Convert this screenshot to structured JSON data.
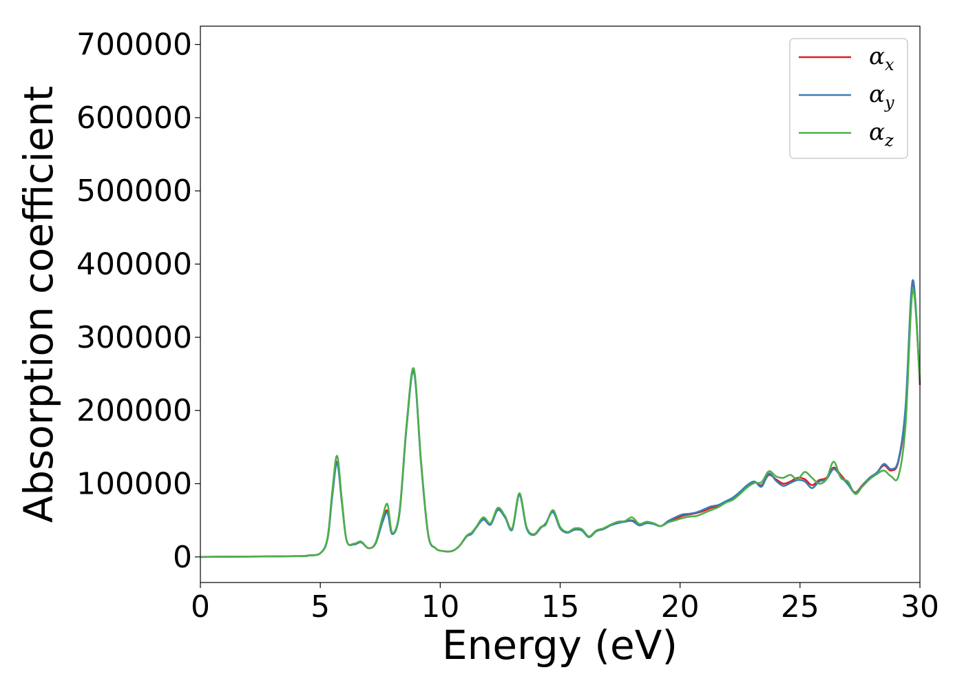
{
  "chart_data": {
    "type": "line",
    "xlabel": "Energy (eV)",
    "ylabel": "Absorption coefficient",
    "xlim": [
      0,
      30
    ],
    "ylim": [
      -35000,
      725000
    ],
    "xticks": [
      0,
      5,
      10,
      15,
      20,
      25,
      30
    ],
    "xtick_labels": [
      "0",
      "5",
      "10",
      "15",
      "20",
      "25",
      "30"
    ],
    "yticks": [
      0,
      100000,
      200000,
      300000,
      400000,
      500000,
      600000,
      700000
    ],
    "ytick_labels": [
      "0",
      "100000",
      "200000",
      "300000",
      "400000",
      "500000",
      "600000",
      "700000"
    ],
    "grid": false,
    "legend_position": "top-right",
    "series": [
      {
        "name": "αx",
        "legend_symbol": "α",
        "legend_subscript": "x",
        "color": "#e41a1c",
        "x": [
          0,
          4,
          4.5,
          5,
          5.3,
          5.5,
          5.7,
          5.9,
          6.1,
          6.4,
          6.7,
          7.0,
          7.3,
          7.6,
          7.8,
          8.0,
          8.3,
          8.6,
          8.9,
          9.2,
          9.5,
          9.8,
          10.1,
          10.5,
          10.8,
          11.1,
          11.3,
          11.5,
          11.8,
          12.1,
          12.4,
          12.7,
          13.0,
          13.3,
          13.6,
          13.9,
          14.2,
          14.4,
          14.7,
          15.0,
          15.3,
          15.6,
          15.9,
          16.2,
          16.5,
          16.8,
          17.1,
          17.4,
          17.7,
          18.0,
          18.3,
          18.6,
          18.9,
          19.2,
          19.5,
          19.8,
          20.1,
          20.4,
          20.7,
          21.0,
          21.3,
          21.6,
          21.9,
          22.2,
          22.5,
          22.8,
          23.1,
          23.4,
          23.7,
          24.0,
          24.3,
          24.6,
          24.9,
          25.2,
          25.5,
          25.8,
          26.1,
          26.4,
          26.7,
          27.0,
          27.3,
          27.6,
          27.9,
          28.2,
          28.5,
          28.8,
          29.1,
          29.4,
          29.7,
          30.0
        ],
        "y": [
          0,
          1000,
          2000,
          5000,
          25000,
          85000,
          130000,
          75000,
          22000,
          17000,
          20000,
          12000,
          18000,
          50000,
          63000,
          32000,
          60000,
          180000,
          255000,
          130000,
          30000,
          12000,
          8000,
          8000,
          15000,
          28000,
          32000,
          40000,
          52000,
          45000,
          65000,
          55000,
          38000,
          85000,
          40000,
          30000,
          40000,
          45000,
          62000,
          40000,
          33000,
          38000,
          37000,
          27000,
          35000,
          38000,
          43000,
          47000,
          48000,
          50000,
          44000,
          47000,
          45000,
          42000,
          48000,
          52000,
          56000,
          58000,
          60000,
          63000,
          67000,
          70000,
          75000,
          80000,
          88000,
          96000,
          102000,
          98000,
          112000,
          106000,
          100000,
          103000,
          108000,
          106000,
          98000,
          105000,
          108000,
          122000,
          112000,
          100000,
          88000,
          98000,
          108000,
          115000,
          125000,
          118000,
          130000,
          200000,
          375000,
          235000
        ]
      },
      {
        "name": "αy",
        "legend_symbol": "α",
        "legend_subscript": "y",
        "color": "#377eb8",
        "x": [
          0,
          4,
          4.5,
          5,
          5.3,
          5.5,
          5.7,
          5.9,
          6.1,
          6.4,
          6.7,
          7.0,
          7.3,
          7.6,
          7.8,
          8.0,
          8.3,
          8.6,
          8.9,
          9.2,
          9.5,
          9.8,
          10.1,
          10.5,
          10.8,
          11.1,
          11.3,
          11.5,
          11.8,
          12.1,
          12.4,
          12.7,
          13.0,
          13.3,
          13.6,
          13.9,
          14.2,
          14.4,
          14.7,
          15.0,
          15.3,
          15.6,
          15.9,
          16.2,
          16.5,
          16.8,
          17.1,
          17.4,
          17.7,
          18.0,
          18.3,
          18.6,
          18.9,
          19.2,
          19.5,
          19.8,
          20.1,
          20.4,
          20.7,
          21.0,
          21.3,
          21.6,
          21.9,
          22.2,
          22.5,
          22.8,
          23.1,
          23.4,
          23.7,
          24.0,
          24.3,
          24.6,
          24.9,
          25.2,
          25.5,
          25.8,
          26.1,
          26.4,
          26.7,
          27.0,
          27.3,
          27.6,
          27.9,
          28.2,
          28.5,
          28.8,
          29.1,
          29.4,
          29.7,
          30.0
        ],
        "y": [
          0,
          1000,
          2000,
          5000,
          24000,
          83000,
          128000,
          74000,
          22000,
          17000,
          20000,
          12000,
          18000,
          48000,
          60000,
          31000,
          59000,
          178000,
          253000,
          128000,
          30000,
          12000,
          8000,
          8000,
          15000,
          28000,
          31000,
          40000,
          51000,
          44000,
          64000,
          54000,
          37000,
          84000,
          39000,
          30000,
          40000,
          46000,
          61000,
          39000,
          33000,
          37000,
          36000,
          27000,
          35000,
          38000,
          43000,
          46000,
          48000,
          49000,
          43000,
          46000,
          45000,
          42000,
          49000,
          54000,
          58000,
          59000,
          61000,
          65000,
          69000,
          71000,
          76000,
          81000,
          89000,
          98000,
          103000,
          96000,
          114000,
          104000,
          97000,
          101000,
          105000,
          103000,
          94000,
          103000,
          106000,
          120000,
          110000,
          99000,
          87000,
          97000,
          108000,
          115000,
          127000,
          120000,
          132000,
          205000,
          378000,
          238000
        ]
      },
      {
        "name": "αz",
        "legend_symbol": "α",
        "legend_subscript": "z",
        "color": "#4daf4a",
        "x": [
          0,
          4,
          4.5,
          5,
          5.3,
          5.5,
          5.7,
          5.9,
          6.1,
          6.4,
          6.7,
          7.0,
          7.3,
          7.6,
          7.8,
          8.0,
          8.3,
          8.6,
          8.9,
          9.2,
          9.5,
          9.8,
          10.1,
          10.5,
          10.8,
          11.1,
          11.3,
          11.5,
          11.8,
          12.1,
          12.4,
          12.7,
          13.0,
          13.3,
          13.6,
          13.9,
          14.2,
          14.4,
          14.7,
          15.0,
          15.3,
          15.6,
          15.9,
          16.2,
          16.5,
          16.8,
          17.1,
          17.4,
          17.7,
          18.0,
          18.3,
          18.6,
          18.9,
          19.2,
          19.5,
          19.8,
          20.1,
          20.4,
          20.7,
          21.0,
          21.3,
          21.6,
          21.9,
          22.2,
          22.5,
          22.8,
          23.1,
          23.4,
          23.7,
          24.0,
          24.3,
          24.6,
          24.9,
          25.2,
          25.5,
          25.8,
          26.1,
          26.4,
          26.7,
          27.0,
          27.3,
          27.6,
          27.9,
          28.2,
          28.5,
          28.8,
          29.1,
          29.4,
          29.7,
          30.0
        ],
        "y": [
          0,
          1000,
          2000,
          5000,
          26000,
          90000,
          138000,
          78000,
          22000,
          18000,
          21000,
          12000,
          19000,
          55000,
          72000,
          33000,
          62000,
          182000,
          257000,
          131000,
          31000,
          12000,
          8000,
          8000,
          15000,
          29000,
          33000,
          41000,
          54000,
          46000,
          67000,
          56000,
          39000,
          87000,
          41000,
          31000,
          41000,
          44000,
          64000,
          41000,
          34000,
          39000,
          38000,
          28000,
          36000,
          39000,
          44000,
          48000,
          49000,
          54000,
          45000,
          48000,
          46000,
          42000,
          47000,
          50000,
          53000,
          55000,
          56000,
          60000,
          64000,
          68000,
          74000,
          78000,
          86000,
          95000,
          101000,
          102000,
          117000,
          110000,
          108000,
          112000,
          106000,
          116000,
          108000,
          100000,
          106000,
          130000,
          108000,
          103000,
          86000,
          96000,
          106000,
          113000,
          118000,
          110000,
          110000,
          180000,
          365000,
          240000
        ]
      }
    ]
  }
}
